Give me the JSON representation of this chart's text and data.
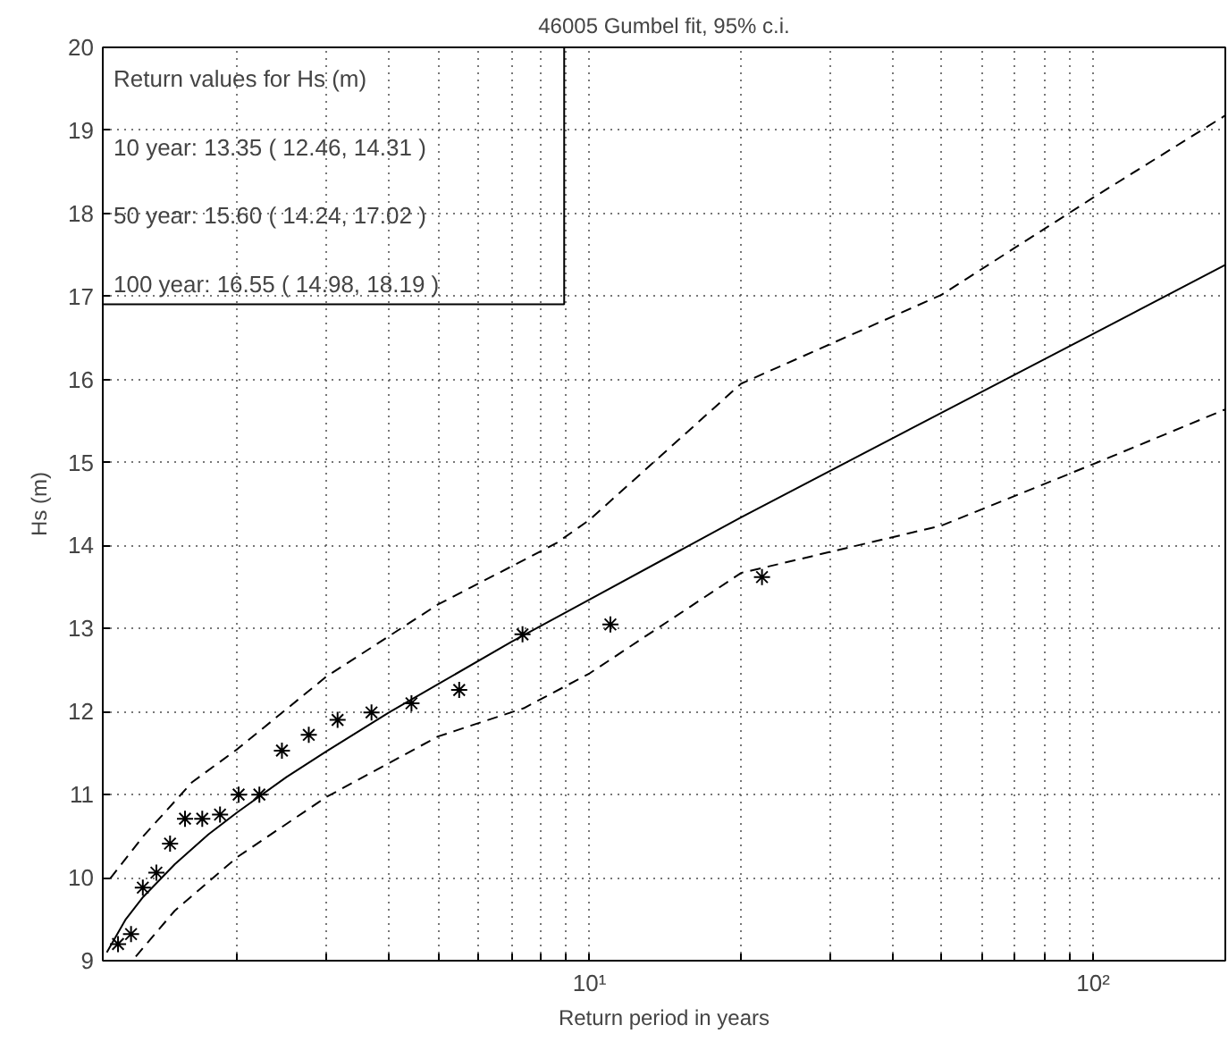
{
  "chart_data": {
    "type": "scatter",
    "title": "46005 Gumbel fit, 95% c.i.",
    "xlabel": "Return period in years",
    "ylabel": "Hs (m)",
    "log": "x",
    "grid": true,
    "xlim": [
      1.08,
      183
    ],
    "ylim": [
      9,
      20
    ],
    "xticks": [
      {
        "value": 2,
        "label": null
      },
      {
        "value": 3,
        "label": null
      },
      {
        "value": 4,
        "label": null
      },
      {
        "value": 5,
        "label": null
      },
      {
        "value": 6,
        "label": null
      },
      {
        "value": 7,
        "label": null
      },
      {
        "value": 8,
        "label": null
      },
      {
        "value": 9,
        "label": null
      },
      {
        "value": 10,
        "label": "10¹"
      },
      {
        "value": 20,
        "label": null
      },
      {
        "value": 30,
        "label": null
      },
      {
        "value": 40,
        "label": null
      },
      {
        "value": 50,
        "label": null
      },
      {
        "value": 60,
        "label": null
      },
      {
        "value": 70,
        "label": null
      },
      {
        "value": 80,
        "label": null
      },
      {
        "value": 90,
        "label": null
      },
      {
        "value": 100,
        "label": "10²"
      }
    ],
    "yticks": [
      9,
      10,
      11,
      12,
      13,
      14,
      15,
      16,
      17,
      18,
      19,
      20
    ],
    "annotations": [
      "Return values for Hs (m)",
      "10 year: 13.35 ( 12.46, 14.31 )",
      "50 year: 15.60 ( 14.24, 17.02 )",
      "100 year: 16.55 ( 14.98, 18.19 )"
    ],
    "series": [
      {
        "marker": "cross",
        "color": "#000000",
        "x": [
          1.158,
          1.229,
          1.297,
          1.38,
          1.469,
          1.573,
          1.702,
          1.846,
          2.01,
          2.21,
          2.45,
          2.77,
          3.16,
          3.69,
          4.43,
          5.51,
          7.36,
          11.0,
          22.0
        ],
        "values": [
          9.2,
          9.32,
          9.88,
          10.06,
          10.41,
          10.71,
          10.71,
          10.76,
          11.0,
          11.0,
          11.53,
          11.72,
          11.9,
          11.99,
          12.1,
          12.26,
          12.93,
          13.05,
          13.62
        ]
      },
      {
        "type": "line",
        "line_style": "solid",
        "color": "#000000",
        "x": [
          1.1,
          1.2,
          1.3,
          1.5,
          1.75,
          2,
          2.5,
          3,
          4,
          5,
          7,
          10,
          20,
          50,
          100,
          183
        ],
        "values": [
          9.1,
          9.5,
          9.77,
          10.16,
          10.52,
          10.79,
          11.21,
          11.52,
          11.99,
          12.33,
          12.84,
          13.35,
          14.34,
          15.6,
          16.55,
          17.38
        ]
      },
      {
        "type": "line",
        "line_style": "dashed",
        "color": "#000000",
        "x": [
          1.117,
          1.3,
          1.625,
          2,
          3,
          5,
          8.6,
          10,
          20,
          50,
          100,
          183
        ],
        "values": [
          9.99,
          10.5,
          11.15,
          11.55,
          12.42,
          13.29,
          14.03,
          14.31,
          15.95,
          17.02,
          18.19,
          19.18
        ]
      },
      {
        "type": "line",
        "line_style": "dashed",
        "color": "#000000",
        "x": [
          1.256,
          1.5,
          2,
          3,
          5,
          7.4,
          10,
          20,
          50,
          100,
          183
        ],
        "values": [
          9.05,
          9.6,
          10.25,
          10.97,
          11.7,
          12.04,
          12.46,
          13.67,
          14.24,
          14.98,
          15.64
        ]
      }
    ]
  }
}
